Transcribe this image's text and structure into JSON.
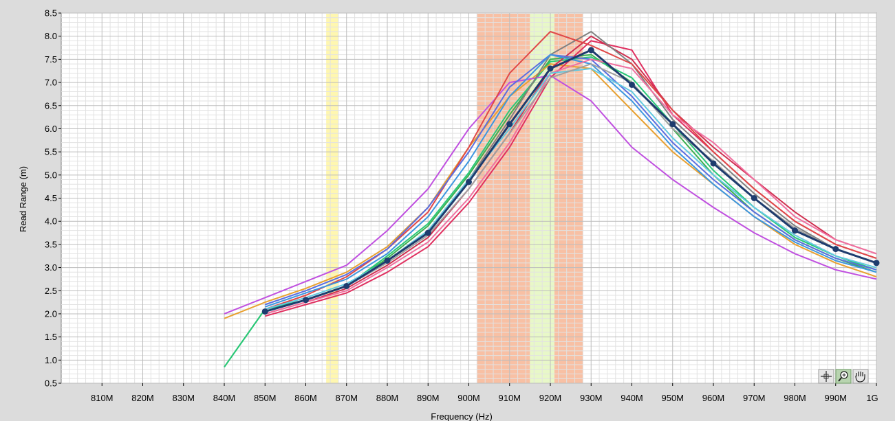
{
  "chart_data": {
    "type": "line",
    "xlabel": "Frequency (Hz)",
    "ylabel": "Read Range (m)",
    "xlim": [
      800,
      1000
    ],
    "ylim": [
      0.5,
      8.5
    ],
    "grid": true,
    "x_tick_labels": [
      "810M",
      "820M",
      "830M",
      "840M",
      "850M",
      "860M",
      "870M",
      "880M",
      "890M",
      "900M",
      "910M",
      "920M",
      "930M",
      "940M",
      "950M",
      "960M",
      "970M",
      "980M",
      "990M",
      "1G"
    ],
    "x_tick_values": [
      810,
      820,
      830,
      840,
      850,
      860,
      870,
      880,
      890,
      900,
      910,
      920,
      930,
      940,
      950,
      960,
      970,
      980,
      990,
      1000
    ],
    "y_tick_labels": [
      "0.5",
      "1.0",
      "1.5",
      "2.0",
      "2.5",
      "3.0",
      "3.5",
      "4.0",
      "4.5",
      "5.0",
      "5.5",
      "6.0",
      "6.5",
      "7.0",
      "7.5",
      "8.0",
      "8.5"
    ],
    "y_tick_values": [
      0.5,
      1.0,
      1.5,
      2.0,
      2.5,
      3.0,
      3.5,
      4.0,
      4.5,
      5.0,
      5.5,
      6.0,
      6.5,
      7.0,
      7.5,
      8.0,
      8.5
    ],
    "bands": [
      {
        "x": [
          865,
          868
        ],
        "color": "#fff7b0"
      },
      {
        "x": [
          902,
          915
        ],
        "color": "#f8c0a4"
      },
      {
        "x": [
          915,
          921
        ],
        "color": "#e8f8c8"
      },
      {
        "x": [
          921,
          928
        ],
        "color": "#f8c0a4"
      }
    ],
    "series": [
      {
        "color": "#3cb050",
        "x": [
          840,
          850,
          860,
          870,
          880,
          890,
          900,
          910,
          920,
          930,
          940,
          950,
          960,
          970,
          980,
          990,
          1000
        ],
        "values": [
          0.85,
          2.1,
          2.3,
          2.6,
          3.2,
          3.9,
          5.0,
          6.3,
          7.5,
          7.6,
          7.0,
          6.0,
          5.0,
          4.2,
          3.6,
          3.2,
          2.9
        ]
      },
      {
        "color": "#28c878",
        "x": [
          840,
          850,
          860,
          870,
          880,
          890,
          900,
          910,
          920,
          930,
          940,
          950,
          960,
          970,
          980,
          990,
          1000
        ],
        "values": [
          0.85,
          2.1,
          2.3,
          2.6,
          3.25,
          3.95,
          5.05,
          6.4,
          7.45,
          7.55,
          7.1,
          6.1,
          5.1,
          4.3,
          3.65,
          3.25,
          2.95
        ]
      },
      {
        "color": "#e8a030",
        "x": [
          840,
          850,
          860,
          870,
          880,
          890,
          900,
          910,
          920,
          930,
          940,
          950,
          960,
          970,
          980,
          990,
          1000
        ],
        "values": [
          1.9,
          2.25,
          2.55,
          2.9,
          3.45,
          4.3,
          5.6,
          6.7,
          7.4,
          7.3,
          6.4,
          5.5,
          4.8,
          4.1,
          3.5,
          3.1,
          2.8
        ]
      },
      {
        "color": "#c050e0",
        "x": [
          840,
          850,
          860,
          870,
          880,
          890,
          900,
          910,
          920,
          930,
          940,
          950,
          960,
          970,
          980,
          990,
          1000
        ],
        "values": [
          2.0,
          2.35,
          2.7,
          3.05,
          3.8,
          4.7,
          6.0,
          7.0,
          7.15,
          6.6,
          5.6,
          4.9,
          4.3,
          3.75,
          3.3,
          2.95,
          2.75
        ]
      },
      {
        "color": "#e03060",
        "x": [
          850,
          860,
          870,
          880,
          890,
          900,
          910,
          920,
          930,
          940,
          950,
          960,
          970,
          980,
          990,
          1000
        ],
        "values": [
          1.95,
          2.2,
          2.45,
          2.9,
          3.45,
          4.4,
          5.6,
          7.1,
          7.9,
          7.7,
          6.3,
          5.5,
          4.7,
          4.0,
          3.5,
          3.2
        ]
      },
      {
        "color": "#d03050",
        "x": [
          850,
          860,
          870,
          880,
          890,
          900,
          910,
          920,
          930,
          940,
          950,
          960,
          970,
          980,
          990,
          1000
        ],
        "values": [
          2.0,
          2.25,
          2.55,
          3.05,
          3.65,
          4.7,
          5.9,
          7.3,
          8.0,
          7.5,
          6.4,
          5.6,
          4.9,
          4.2,
          3.6,
          3.3
        ]
      },
      {
        "color": "#808080",
        "x": [
          850,
          860,
          870,
          880,
          890,
          900,
          910,
          920,
          930,
          940,
          950,
          960,
          970,
          980,
          990,
          1000
        ],
        "values": [
          2.05,
          2.3,
          2.6,
          3.15,
          3.8,
          4.9,
          6.2,
          7.6,
          8.1,
          7.4,
          6.2,
          5.4,
          4.6,
          3.9,
          3.4,
          3.1
        ]
      },
      {
        "color": "#e04848",
        "x": [
          850,
          860,
          870,
          880,
          890,
          900,
          910,
          920,
          930,
          940,
          950,
          960,
          970,
          980,
          990,
          1000
        ],
        "values": [
          2.1,
          2.4,
          2.8,
          3.4,
          4.2,
          5.6,
          7.2,
          8.1,
          7.8,
          7.4,
          6.4,
          5.5,
          4.7,
          4.0,
          3.5,
          3.2
        ]
      },
      {
        "color": "#5a6ee0",
        "x": [
          850,
          860,
          870,
          880,
          890,
          900,
          910,
          920,
          930,
          940,
          950,
          960,
          970,
          980,
          990,
          1000
        ],
        "values": [
          2.2,
          2.5,
          2.85,
          3.4,
          4.3,
          5.5,
          6.9,
          7.6,
          7.5,
          6.7,
          5.7,
          4.9,
          4.2,
          3.6,
          3.2,
          2.95
        ]
      },
      {
        "color": "#3c96e0",
        "x": [
          850,
          860,
          870,
          880,
          890,
          900,
          910,
          920,
          930,
          940,
          950,
          960,
          970,
          980,
          990,
          1000
        ],
        "values": [
          2.15,
          2.45,
          2.75,
          3.3,
          4.1,
          5.3,
          6.7,
          7.6,
          7.4,
          6.6,
          5.6,
          4.8,
          4.1,
          3.55,
          3.15,
          2.9
        ]
      },
      {
        "color": "#f070a0",
        "x": [
          850,
          860,
          870,
          880,
          890,
          900,
          910,
          920,
          930,
          940,
          950,
          960,
          970,
          980,
          990,
          1000
        ],
        "values": [
          2.0,
          2.25,
          2.5,
          3.0,
          3.55,
          4.5,
          5.7,
          7.2,
          7.5,
          7.3,
          6.3,
          5.7,
          4.9,
          4.1,
          3.6,
          3.3
        ]
      },
      {
        "color": "#60c8e0",
        "x": [
          850,
          860,
          870,
          880,
          890,
          900,
          910,
          920,
          930,
          940,
          950,
          960,
          970,
          980,
          990,
          1000
        ],
        "values": [
          2.1,
          2.35,
          2.65,
          3.15,
          3.8,
          4.9,
          6.0,
          7.2,
          7.3,
          6.8,
          5.8,
          5.0,
          4.3,
          3.7,
          3.25,
          3.0
        ]
      },
      {
        "color": "#a0a0a0",
        "x": [
          850,
          860,
          870,
          880,
          890,
          900,
          910,
          920,
          930,
          940,
          950,
          960,
          970,
          980,
          990,
          1000
        ],
        "values": [
          2.05,
          2.3,
          2.6,
          3.1,
          3.7,
          4.7,
          5.9,
          7.1,
          7.4,
          7.0,
          6.0,
          5.3,
          4.5,
          3.85,
          3.4,
          3.1
        ]
      },
      {
        "color": "#1e3c6e",
        "x": [
          850,
          860,
          870,
          880,
          890,
          900,
          910,
          920,
          930,
          940,
          950,
          960,
          970,
          980,
          990,
          1000
        ],
        "values": [
          2.05,
          2.3,
          2.6,
          3.15,
          3.75,
          4.85,
          6.1,
          7.3,
          7.7,
          6.95,
          6.1,
          5.25,
          4.5,
          3.8,
          3.4,
          3.1
        ],
        "markers": true,
        "width": 3
      }
    ]
  },
  "toolbar": {
    "cursor_icon": "crosshair-icon",
    "zoom_icon": "zoom-icon",
    "pan_icon": "hand-pan-icon"
  }
}
